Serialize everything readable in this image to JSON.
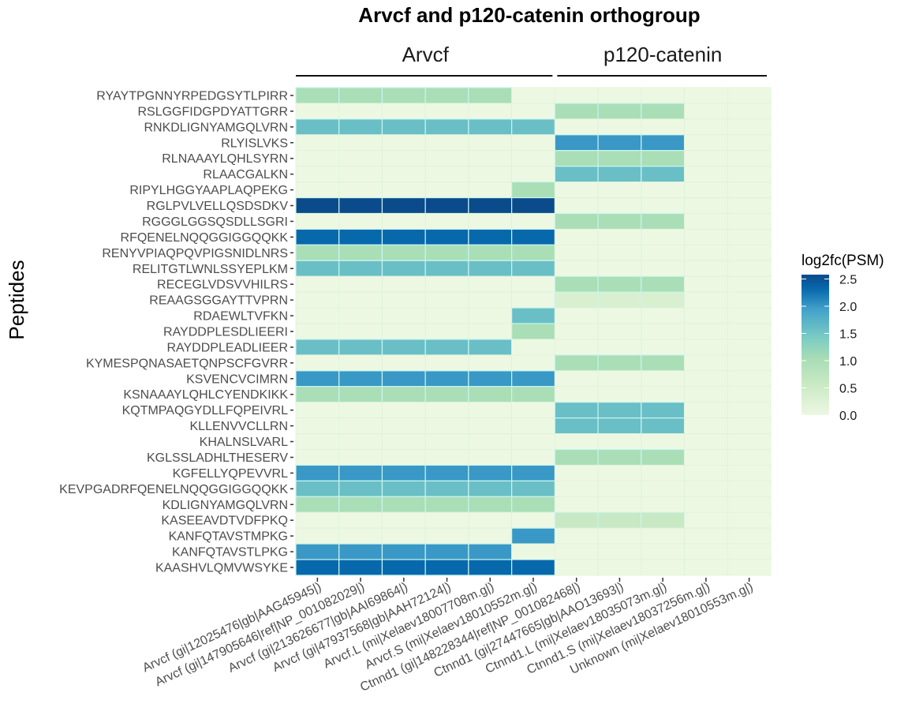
{
  "chart_data": {
    "type": "heatmap",
    "title": "Arvcf and p120-catenin orthogroup",
    "xlabel": "",
    "ylabel": "Peptides",
    "facets": [
      {
        "label": "Arvcf",
        "columns": [
          0,
          1,
          2,
          3,
          4,
          5
        ]
      },
      {
        "label": "p120-catenin",
        "columns": [
          6,
          7,
          8,
          9,
          10
        ]
      }
    ],
    "columns": [
      "Arvcf (gi|12025476|gb|AAG45945|)",
      "Arvcf (gi|147905646|ref|NP_001082029|)",
      "Arvcf (gi|213626677|gb|AAI69864|)",
      "Arvcf (gi|47937568|gb|AAH72124|)",
      "Arvcf.L (mi|Xelaev18007708m.g|)",
      "Arvcf.S (mi|Xelaev18010552m.g|)",
      "Ctnnd1 (gi|148228344|ref|NP_001082468|)",
      "Ctnnd1 (gi|27447665|gb|AAO13693|)",
      "Ctnnd1.L (mi|Xelaev18035073m.g|)",
      "Ctnnd1.S (mi|Xelaev18037256m.g|)",
      "Unknown (mi|Xelaev18010553m.g|)"
    ],
    "rows": [
      "RYAYTPGNNYRPEDGSYTLPIRR",
      "RSLGGFIDGPDYATTGRR",
      "RNKDLIGNYAMGQLVRN",
      "RLYISLVKS",
      "RLNAAAYLQHLSYRN",
      "RLAACGALKN",
      "RIPYLHGGYAAPLAQPEKG",
      "RGLPVLVELLQSDSDKV",
      "RGGGLGGSQSDLLSGRI",
      "RFQENELNQQGGIGGQQKK",
      "RENYVPIAQPQVPIGSNIDLNRS",
      "RELITGTLWNLSSYEPLKM",
      "RECEGLVDSVVHILRS",
      "REAAGSGGAYTTVPRN",
      "RDAEWLTVFKN",
      "RAYDDPLESDLIEERI",
      "RAYDDPLEADLIEER",
      "KYMESPQNASAETQNPSCFGVRR",
      "KSVENCVCIMRN",
      "KSNAAAYLQHLCYENDKIKK",
      "KQTMPAQGYDLLFQPEIVRL",
      "KLLENVVCLLRN",
      "KHALNSLVARL",
      "KGLSSLADHLTHESERV",
      "KGFELLYQPEVVRL",
      "KEVPGADRFQENELNQQGGIGGQQKK",
      "KDLIGNYAMGQLVRN",
      "KASEEAVDTVDFPKQ",
      "KANFQTAVSTMPKG",
      "KANFQTAVSTLPKG",
      "KAASHVLQMVWSYKE"
    ],
    "values": [
      [
        1.0,
        1.0,
        1.0,
        1.0,
        1.0,
        0,
        0,
        0,
        0,
        0,
        0
      ],
      [
        0,
        0,
        0,
        0,
        0,
        0,
        1.0,
        1.0,
        1.0,
        0,
        0
      ],
      [
        1.58,
        1.58,
        1.58,
        1.58,
        1.58,
        1.58,
        0,
        0,
        0,
        0,
        0
      ],
      [
        0,
        0,
        0,
        0,
        0,
        0,
        2.0,
        2.0,
        2.0,
        0,
        0
      ],
      [
        0,
        0,
        0,
        0,
        0,
        0,
        1.0,
        1.0,
        1.0,
        0,
        0
      ],
      [
        0,
        0,
        0,
        0,
        0,
        0,
        1.58,
        1.58,
        1.58,
        0,
        0
      ],
      [
        0,
        0,
        0,
        0,
        0,
        1.0,
        0,
        0,
        0,
        0,
        0
      ],
      [
        2.58,
        2.58,
        2.58,
        2.58,
        2.58,
        2.58,
        0,
        0,
        0,
        0,
        0
      ],
      [
        0,
        0,
        0,
        0,
        0,
        0,
        1.0,
        1.0,
        1.0,
        0,
        0
      ],
      [
        2.32,
        2.32,
        2.32,
        2.32,
        2.32,
        2.32,
        0,
        0,
        0,
        0,
        0
      ],
      [
        1.0,
        1.0,
        1.0,
        1.0,
        1.0,
        1.0,
        0,
        0,
        0,
        0,
        0
      ],
      [
        1.58,
        1.58,
        1.58,
        1.58,
        1.58,
        1.58,
        0,
        0,
        0,
        0,
        0
      ],
      [
        0,
        0,
        0,
        0,
        0,
        0,
        1.0,
        1.0,
        1.0,
        0,
        0
      ],
      [
        0,
        0,
        0,
        0,
        0,
        0,
        0.32,
        0.32,
        0.32,
        0,
        0
      ],
      [
        0,
        0,
        0,
        0,
        0,
        1.58,
        0,
        0,
        0,
        0,
        0
      ],
      [
        0,
        0,
        0,
        0,
        0,
        1.0,
        0,
        0,
        0,
        0,
        0
      ],
      [
        1.58,
        1.58,
        1.58,
        1.58,
        1.58,
        0,
        0,
        0,
        0,
        0,
        0
      ],
      [
        0,
        0,
        0,
        0,
        0,
        0,
        1.0,
        1.0,
        1.0,
        0,
        0
      ],
      [
        2.0,
        2.0,
        2.0,
        2.0,
        2.0,
        2.0,
        0,
        0,
        0,
        0,
        0
      ],
      [
        1.0,
        1.0,
        1.0,
        1.0,
        1.0,
        1.0,
        0,
        0,
        0,
        0,
        0
      ],
      [
        0,
        0,
        0,
        0,
        0,
        0,
        1.58,
        1.58,
        1.58,
        0,
        0
      ],
      [
        0,
        0,
        0,
        0,
        0,
        0,
        1.58,
        1.58,
        1.58,
        0,
        0
      ],
      [
        0,
        0,
        0,
        0,
        0,
        0,
        0,
        0,
        0,
        0,
        0
      ],
      [
        0,
        0,
        0,
        0,
        0,
        0,
        1.0,
        1.0,
        1.0,
        0,
        0
      ],
      [
        2.0,
        2.0,
        2.0,
        2.0,
        2.0,
        2.0,
        0,
        0,
        0,
        0,
        0
      ],
      [
        1.58,
        1.58,
        1.58,
        1.58,
        1.58,
        1.58,
        0,
        0,
        0,
        0,
        0
      ],
      [
        1.0,
        1.0,
        1.0,
        1.0,
        1.0,
        1.0,
        0,
        0,
        0,
        0,
        0
      ],
      [
        0,
        0,
        0,
        0,
        0,
        0,
        0.58,
        0.58,
        0.58,
        0,
        0
      ],
      [
        0,
        0,
        0,
        0,
        0,
        2.0,
        0,
        0,
        0,
        0,
        0
      ],
      [
        2.0,
        2.0,
        2.0,
        2.0,
        2.0,
        0,
        0,
        0,
        0,
        0,
        0
      ],
      [
        2.32,
        2.32,
        2.32,
        2.32,
        2.32,
        2.32,
        0,
        0,
        0,
        0,
        0
      ]
    ],
    "color_scale": {
      "title": "log2fc(PSM)",
      "range": [
        0,
        2.58
      ],
      "ticks": [
        "0.0",
        "0.5",
        "1.0",
        "1.5",
        "2.0",
        "2.5"
      ],
      "tick_values": [
        0,
        0.5,
        1.0,
        1.5,
        2.0,
        2.5
      ],
      "colors": [
        "#edf8e3",
        "#ccebc5",
        "#a8ddb5",
        "#7bccc4",
        "#43a2ca",
        "#0868ac",
        "#0b4a8b"
      ],
      "stops": [
        0,
        0.2,
        0.4,
        0.55,
        0.75,
        0.9,
        1.0
      ]
    },
    "legend_position": "right",
    "grid": false
  }
}
